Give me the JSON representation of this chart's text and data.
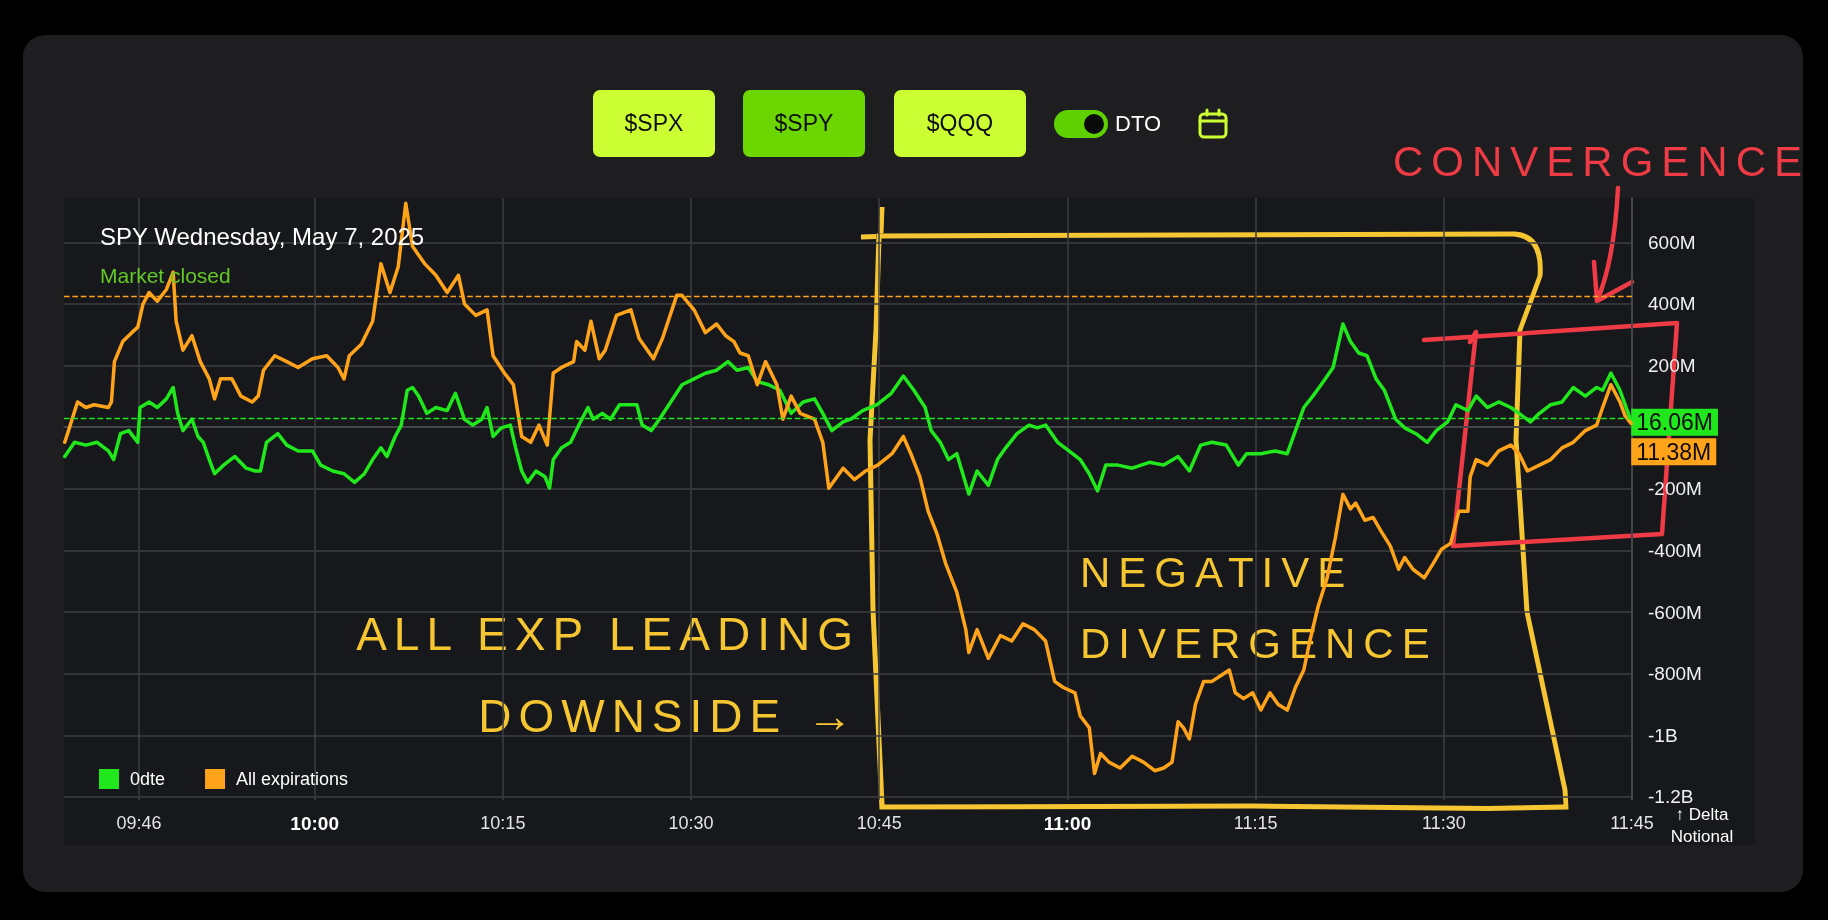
{
  "chart_data": {
    "type": "line",
    "title": "SPY Wednesday, May 7, 2025",
    "subtitle": "Market closed",
    "ylabel": "↑ Delta Notional",
    "annotations": [
      "$SPX",
      "$SPY",
      "$QQQ",
      "DTO",
      "CONVERGENCE",
      "NEGATIVE\nDIVERGENCE",
      "ALL EXP LEADING\nDOWNSIDE →"
    ],
    "xlim": [
      9.667,
      11.75
    ],
    "xticks": [
      {
        "value": 9.7667,
        "label": "09:46"
      },
      {
        "value": 10,
        "label": "10:00"
      },
      {
        "value": 10.25,
        "label": "10:15"
      },
      {
        "value": 10.5,
        "label": "10:30"
      },
      {
        "value": 10.75,
        "label": "10:45"
      },
      {
        "value": 11,
        "label": "11:00"
      },
      {
        "value": 11.25,
        "label": "11:15"
      },
      {
        "value": 11.5,
        "label": "11:30"
      },
      {
        "value": 11.75,
        "label": "11:45"
      }
    ],
    "ylim": [
      -1210000000.0,
      744000000.0
    ],
    "yticks": [
      {
        "value": -1200000000.0,
        "label": "-1.2B"
      },
      {
        "value": -1000000000.0,
        "label": "-1B"
      },
      {
        "value": -800000000.0,
        "label": "-800M"
      },
      {
        "value": -600000000.0,
        "label": "-600M"
      },
      {
        "value": -400000000.0,
        "label": "-400M"
      },
      {
        "value": -200000000.0,
        "label": "-200M"
      },
      {
        "value": 0,
        "label": null
      },
      {
        "value": 200000000.0,
        "label": "200M"
      },
      {
        "value": 400000000.0,
        "label": "400M"
      },
      {
        "value": 600000000.0,
        "label": "600M"
      }
    ],
    "grid": true,
    "legend": "bottom left",
    "marker": "none",
    "ref_lines": [
      {
        "axis": "y",
        "value": 425000000.0,
        "color": "#ffa31a",
        "line_style": "dashed"
      },
      {
        "axis": "y",
        "value": 30000000.0,
        "color": "#20e81c",
        "line_style": "dashed"
      }
    ],
    "series": [
      {
        "name": "0dte",
        "color": "#20e81c",
        "x": [
          9.668,
          9.681,
          9.696,
          9.711,
          9.726,
          9.733,
          9.742,
          9.753,
          9.765,
          9.768,
          9.78,
          9.791,
          9.803,
          9.812,
          9.818,
          9.825,
          9.837,
          9.845,
          9.852,
          9.86,
          9.867,
          9.879,
          9.894,
          9.909,
          9.921,
          9.928,
          9.936,
          9.951,
          9.963,
          9.978,
          9.997,
          10.008,
          10.024,
          10.039,
          10.053,
          10.066,
          10.077,
          10.088,
          10.096,
          10.107,
          10.115,
          10.123,
          10.13,
          10.138,
          10.149,
          10.161,
          10.176,
          10.187,
          10.199,
          10.21,
          10.222,
          10.229,
          10.237,
          10.248,
          10.26,
          10.267,
          10.275,
          10.283,
          10.294,
          10.306,
          10.312,
          10.317,
          10.328,
          10.34,
          10.351,
          10.363,
          10.37,
          10.382,
          10.393,
          10.405,
          10.416,
          10.428,
          10.435,
          10.447,
          10.458,
          10.473,
          10.488,
          10.504,
          10.519,
          10.534,
          10.549,
          10.561,
          10.576,
          10.588,
          10.603,
          10.618,
          10.633,
          10.649,
          10.664,
          10.675,
          10.687,
          10.702,
          10.712,
          10.728,
          10.747,
          10.766,
          10.782,
          10.796,
          10.811,
          10.819,
          10.831,
          10.842,
          10.853,
          10.869,
          10.88,
          10.895,
          10.907,
          10.918,
          10.933,
          10.949,
          10.96,
          10.971,
          10.987,
          11.002,
          11.017,
          11.029,
          11.04,
          11.051,
          11.067,
          11.086,
          11.109,
          11.128,
          11.147,
          11.162,
          11.177,
          11.192,
          11.211,
          11.227,
          11.238,
          11.257,
          11.276,
          11.292,
          11.303,
          11.314,
          11.326,
          11.337,
          11.353,
          11.366,
          11.376,
          11.387,
          11.398,
          11.41,
          11.421,
          11.436,
          11.448,
          11.463,
          11.478,
          11.49,
          11.505,
          11.516,
          11.532,
          11.543,
          11.558,
          11.573,
          11.589,
          11.6,
          11.615,
          11.627,
          11.642,
          11.657,
          11.672,
          11.688,
          11.703,
          11.711,
          11.722,
          11.734,
          11.745,
          11.749
        ],
        "values": [
          -95000000.0,
          -49000000.0,
          -58000000.0,
          -49000000.0,
          -77000000.0,
          -105000000.0,
          -21000000.0,
          -11000000.0,
          -49000000.0,
          64000000.0,
          82000000.0,
          64000000.0,
          92000000.0,
          129000000.0,
          45000000.0,
          -11000000.0,
          26000000.0,
          -30000000.0,
          -49000000.0,
          -105000000.0,
          -151000000.0,
          -123000000.0,
          -95000000.0,
          -133000000.0,
          -142000000.0,
          -142000000.0,
          -49000000.0,
          -21000000.0,
          -58000000.0,
          -77000000.0,
          -77000000.0,
          -123000000.0,
          -142000000.0,
          -151000000.0,
          -179000000.0,
          -151000000.0,
          -105000000.0,
          -67000000.0,
          -95000000.0,
          -30000000.0,
          7000000.0,
          120000000.0,
          129000000.0,
          101000000.0,
          45000000.0,
          64000000.0,
          54000000.0,
          110000000.0,
          26000000.0,
          7000000.0,
          26000000.0,
          64000000.0,
          -30000000.0,
          -2000000.0,
          7000000.0,
          -67000000.0,
          -142000000.0,
          -179000000.0,
          -142000000.0,
          -161000000.0,
          -198000000.0,
          -105000000.0,
          -67000000.0,
          -49000000.0,
          7000000.0,
          64000000.0,
          26000000.0,
          45000000.0,
          26000000.0,
          73000000.0,
          73000000.0,
          73000000.0,
          7000000.0,
          -11000000.0,
          26000000.0,
          82000000.0,
          138000000.0,
          157000000.0,
          175000000.0,
          185000000.0,
          213000000.0,
          185000000.0,
          194000000.0,
          148000000.0,
          138000000.0,
          120000000.0,
          45000000.0,
          82000000.0,
          92000000.0,
          45000000.0,
          -11000000.0,
          17000000.0,
          26000000.0,
          54000000.0,
          73000000.0,
          110000000.0,
          166000000.0,
          120000000.0,
          64000000.0,
          -11000000.0,
          -49000000.0,
          -105000000.0,
          -86000000.0,
          -217000000.0,
          -142000000.0,
          -189000000.0,
          -105000000.0,
          -67000000.0,
          -21000000.0,
          7000000.0,
          -2000000.0,
          7000000.0,
          -49000000.0,
          -77000000.0,
          -105000000.0,
          -151000000.0,
          -207000000.0,
          -123000000.0,
          -123000000.0,
          -133000000.0,
          -114000000.0,
          -123000000.0,
          -95000000.0,
          -142000000.0,
          -58000000.0,
          -49000000.0,
          -58000000.0,
          -123000000.0,
          -86000000.0,
          -86000000.0,
          -77000000.0,
          -86000000.0,
          -11000000.0,
          64000000.0,
          101000000.0,
          138000000.0,
          194000000.0,
          335000000.0,
          278000000.0,
          241000000.0,
          232000000.0,
          157000000.0,
          120000000.0,
          26000000.0,
          -2000000.0,
          -21000000.0,
          -49000000.0,
          -11000000.0,
          17000000.0,
          73000000.0,
          54000000.0,
          101000000.0,
          64000000.0,
          82000000.0,
          64000000.0,
          45000000.0,
          17000000.0,
          45000000.0,
          73000000.0,
          82000000.0,
          129000000.0,
          101000000.0,
          129000000.0,
          120000000.0,
          176000000.0,
          120000000.0,
          45000000.0,
          16060000.0
        ],
        "value_labels": [
          null,
          null,
          null,
          null,
          null,
          null,
          null,
          null,
          null,
          null,
          null,
          null,
          null,
          null,
          null,
          null,
          null,
          null,
          null,
          null,
          null,
          null,
          null,
          null,
          null,
          null,
          null,
          null,
          null,
          null,
          null,
          null,
          null,
          null,
          null,
          null,
          null,
          null,
          null,
          null,
          null,
          null,
          null,
          null,
          null,
          null,
          null,
          null,
          null,
          null,
          null,
          null,
          null,
          null,
          null,
          null,
          null,
          null,
          null,
          null,
          null,
          null,
          null,
          null,
          null,
          null,
          null,
          null,
          null,
          null,
          null,
          null,
          null,
          null,
          null,
          null,
          null,
          null,
          null,
          null,
          null,
          null,
          null,
          null,
          null,
          null,
          null,
          null,
          null,
          null,
          null,
          null,
          null,
          null,
          null,
          null,
          null,
          null,
          null,
          null,
          null,
          null,
          null,
          null,
          null,
          null,
          null,
          null,
          null,
          null,
          null,
          null,
          null,
          null,
          null,
          null,
          null,
          null,
          null,
          null,
          null,
          null,
          null,
          null,
          null,
          null,
          null,
          null,
          null,
          null,
          null,
          null,
          null,
          null,
          null,
          null,
          null,
          null,
          null,
          null,
          null,
          null,
          null,
          null,
          null,
          null,
          null,
          null,
          null,
          null,
          null,
          null,
          null,
          null,
          null,
          null,
          null,
          null,
          null,
          null,
          null,
          null,
          null,
          null,
          null,
          null,
          null,
          "16.06M"
        ]
      },
      {
        "name": "All expirations",
        "color": "#ffa31a",
        "x": [
          9.668,
          9.673,
          9.685,
          9.696,
          9.707,
          9.726,
          9.73,
          9.734,
          9.745,
          9.757,
          9.765,
          9.772,
          9.78,
          9.791,
          9.803,
          9.812,
          9.816,
          9.825,
          9.837,
          9.848,
          9.86,
          9.867,
          9.875,
          9.89,
          9.902,
          9.917,
          9.925,
          9.932,
          9.947,
          9.963,
          9.978,
          9.997,
          10.016,
          10.031,
          10.039,
          10.046,
          10.062,
          10.077,
          10.088,
          10.1,
          10.111,
          10.121,
          10.13,
          10.146,
          10.161,
          10.176,
          10.191,
          10.199,
          10.214,
          10.229,
          10.237,
          10.252,
          10.264,
          10.275,
          10.287,
          10.298,
          10.309,
          10.317,
          10.328,
          10.344,
          10.348,
          10.359,
          10.367,
          10.378,
          10.386,
          10.401,
          10.42,
          10.431,
          10.45,
          10.462,
          10.481,
          10.488,
          10.504,
          10.519,
          10.534,
          10.546,
          10.557,
          10.565,
          10.576,
          10.588,
          10.599,
          10.614,
          10.622,
          10.633,
          10.645,
          10.664,
          10.675,
          10.683,
          10.702,
          10.717,
          10.732,
          10.748,
          10.767,
          10.782,
          10.792,
          10.804,
          10.815,
          10.827,
          10.838,
          10.853,
          10.865,
          10.869,
          10.88,
          10.895,
          10.911,
          10.926,
          10.941,
          10.956,
          10.971,
          10.983,
          10.994,
          11.01,
          11.017,
          11.029,
          11.036,
          11.044,
          11.055,
          11.07,
          11.086,
          11.101,
          11.116,
          11.128,
          11.139,
          11.147,
          11.154,
          11.162,
          11.17,
          11.181,
          11.192,
          11.204,
          11.215,
          11.223,
          11.234,
          11.246,
          11.257,
          11.269,
          11.28,
          11.292,
          11.303,
          11.314,
          11.322,
          11.333,
          11.345,
          11.356,
          11.366,
          11.376,
          11.383,
          11.395,
          11.406,
          11.417,
          11.429,
          11.44,
          11.448,
          11.459,
          11.474,
          11.486,
          11.497,
          11.509,
          11.52,
          11.532,
          11.535,
          11.543,
          11.558,
          11.573,
          11.589,
          11.6,
          11.611,
          11.627,
          11.642,
          11.657,
          11.672,
          11.688,
          11.703,
          11.711,
          11.722,
          11.734,
          11.741,
          11.749
        ],
        "values": [
          -49000000.0,
          -11000000.0,
          82000000.0,
          64000000.0,
          73000000.0,
          64000000.0,
          82000000.0,
          213000000.0,
          278000000.0,
          307000000.0,
          325000000.0,
          400000000.0,
          437000000.0,
          409000000.0,
          447000000.0,
          503000000.0,
          344000000.0,
          250000000.0,
          297000000.0,
          213000000.0,
          157000000.0,
          92000000.0,
          157000000.0,
          157000000.0,
          101000000.0,
          82000000.0,
          101000000.0,
          185000000.0,
          232000000.0,
          213000000.0,
          194000000.0,
          222000000.0,
          232000000.0,
          194000000.0,
          157000000.0,
          232000000.0,
          269000000.0,
          344000000.0,
          531000000.0,
          437000000.0,
          521000000.0,
          727000000.0,
          587000000.0,
          531000000.0,
          493000000.0,
          437000000.0,
          493000000.0,
          400000000.0,
          363000000.0,
          381000000.0,
          232000000.0,
          176000000.0,
          138000000.0,
          -30000000.0,
          -49000000.0,
          7000000.0,
          -58000000.0,
          176000000.0,
          194000000.0,
          213000000.0,
          278000000.0,
          250000000.0,
          344000000.0,
          222000000.0,
          250000000.0,
          363000000.0,
          381000000.0,
          288000000.0,
          222000000.0,
          288000000.0,
          428000000.0,
          428000000.0,
          381000000.0,
          307000000.0,
          335000000.0,
          297000000.0,
          278000000.0,
          241000000.0,
          232000000.0,
          138000000.0,
          213000000.0,
          138000000.0,
          26000000.0,
          101000000.0,
          45000000.0,
          26000000.0,
          -49000000.0,
          -198000000.0,
          -133000000.0,
          -170000000.0,
          -142000000.0,
          -123000000.0,
          -86000000.0,
          -30000000.0,
          -86000000.0,
          -161000000.0,
          -273000000.0,
          -348000000.0,
          -441000000.0,
          -535000000.0,
          -657000000.0,
          -731000000.0,
          -657000000.0,
          -750000000.0,
          -676000000.0,
          -694000000.0,
          -638000000.0,
          -657000000.0,
          -694000000.0,
          -825000000.0,
          -844000000.0,
          -862000000.0,
          -937000000.0,
          -975000000.0,
          -1124000000.0,
          -1059000000.0,
          -1087000000.0,
          -1106000000.0,
          -1068000000.0,
          -1087000000.0,
          -1115000000.0,
          -1106000000.0,
          -1087000000.0,
          -956000000.0,
          -975000000.0,
          -1012000000.0,
          -900000000.0,
          -825000000.0,
          -825000000.0,
          -806000000.0,
          -788000000.0,
          -862000000.0,
          -881000000.0,
          -862000000.0,
          -918000000.0,
          -862000000.0,
          -900000000.0,
          -918000000.0,
          -844000000.0,
          -788000000.0,
          -694000000.0,
          -582000000.0,
          -489000000.0,
          -358000000.0,
          -218000000.0,
          -265000000.0,
          -246000000.0,
          -302000000.0,
          -293000000.0,
          -339000000.0,
          -386000000.0,
          -461000000.0,
          -423000000.0,
          -461000000.0,
          -489000000.0,
          -442000000.0,
          -396000000.0,
          -377000000.0,
          -273000000.0,
          -273000000.0,
          -161000000.0,
          -105000000.0,
          -123000000.0,
          -77000000.0,
          -58000000.0,
          -86000000.0,
          -142000000.0,
          -123000000.0,
          -105000000.0,
          -67000000.0,
          -49000000.0,
          -11000000.0,
          7000000.0,
          64000000.0,
          138000000.0,
          82000000.0,
          36000000.0,
          11380000.0
        ],
        "value_labels": [
          null,
          null,
          null,
          null,
          null,
          null,
          null,
          null,
          null,
          null,
          null,
          null,
          null,
          null,
          null,
          null,
          null,
          null,
          null,
          null,
          null,
          null,
          null,
          null,
          null,
          null,
          null,
          null,
          null,
          null,
          null,
          null,
          null,
          null,
          null,
          null,
          null,
          null,
          null,
          null,
          null,
          null,
          null,
          null,
          null,
          null,
          null,
          null,
          null,
          null,
          null,
          null,
          null,
          null,
          null,
          null,
          null,
          null,
          null,
          null,
          null,
          null,
          null,
          null,
          null,
          null,
          null,
          null,
          null,
          null,
          null,
          null,
          null,
          null,
          null,
          null,
          null,
          null,
          null,
          null,
          null,
          null,
          null,
          null,
          null,
          null,
          null,
          null,
          null,
          null,
          null,
          null,
          null,
          null,
          null,
          null,
          null,
          null,
          null,
          null,
          null,
          null,
          null,
          null,
          null,
          null,
          null,
          null,
          null,
          null,
          null,
          null,
          null,
          null,
          null,
          null,
          null,
          null,
          null,
          null,
          null,
          null,
          null,
          null,
          null,
          null,
          null,
          null,
          null,
          null,
          null,
          null,
          null,
          null,
          null,
          null,
          null,
          null,
          null,
          null,
          null,
          null,
          null,
          null,
          null,
          null,
          null,
          null,
          null,
          null,
          null,
          null,
          null,
          null,
          null,
          null,
          null,
          null,
          null,
          null,
          null,
          null,
          null,
          null,
          null,
          null,
          null,
          null,
          null,
          null,
          null,
          null,
          null,
          null,
          null,
          null,
          null,
          "11.38M"
        ]
      }
    ]
  }
}
